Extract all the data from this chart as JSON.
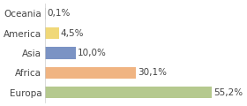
{
  "categories": [
    "Europa",
    "Africa",
    "Asia",
    "America",
    "Oceania"
  ],
  "values": [
    55.2,
    30.1,
    10.0,
    4.5,
    0.1
  ],
  "labels": [
    "55,2%",
    "30,1%",
    "10,0%",
    "4,5%",
    "0,1%"
  ],
  "colors": [
    "#b5c98e",
    "#f0b482",
    "#7b93c4",
    "#f0d878",
    "#d0d0d0"
  ],
  "background_color": "#ffffff",
  "bar_height": 0.6,
  "label_fontsize": 7.5,
  "tick_fontsize": 7.5,
  "xlim": [
    0,
    65
  ]
}
